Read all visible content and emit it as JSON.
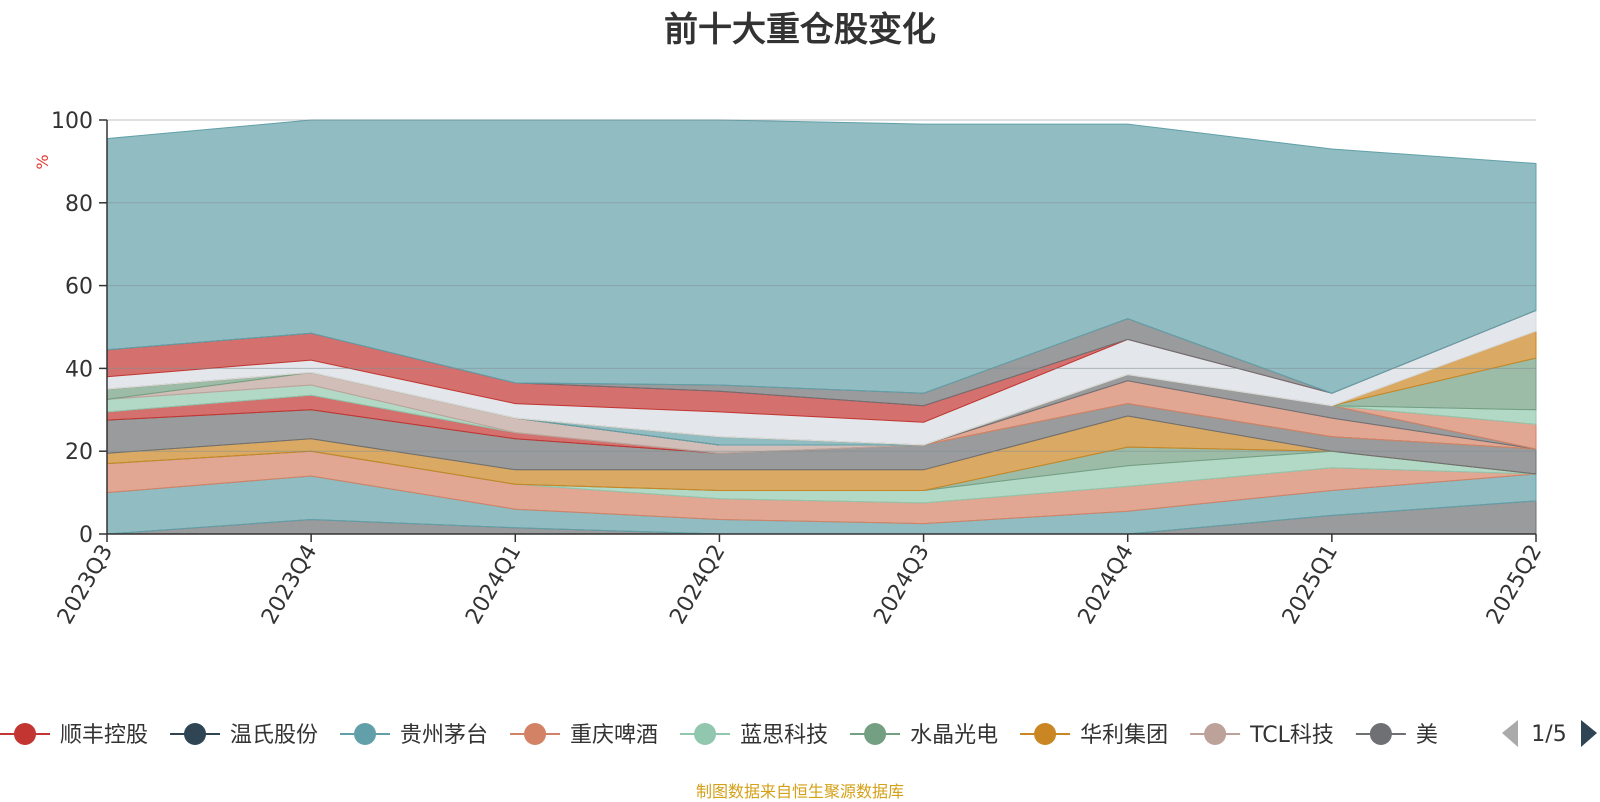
{
  "footer": "制图数据来自恒生聚源数据库",
  "colors": {
    "axis": "#333333",
    "grid": "#7f8f94",
    "ylabel": "#e53935",
    "title": "#333333",
    "footer": "#d4a017",
    "pager_active": "#2f4554",
    "pager_inactive": "#aaaaaa"
  },
  "legend": {
    "pager": "1/5",
    "prev_icon": "triangle-left-icon",
    "next_icon": "triangle-right-icon"
  },
  "chart_data": {
    "type": "area",
    "stacked": true,
    "title": "前十大重仓股变化",
    "xlabel": "",
    "ylabel": "%",
    "ylim": [
      0,
      100
    ],
    "yticks": [
      0,
      20,
      40,
      60,
      80,
      100
    ],
    "grid": true,
    "legend_position": "bottom",
    "categories": [
      "2023Q3",
      "2023Q4",
      "2024Q1",
      "2024Q2",
      "2024Q3",
      "2024Q4",
      "2025Q1",
      "2025Q2"
    ],
    "series": [
      {
        "name": "",
        "color": "#6e7074",
        "values": [
          0.0,
          3.5,
          1.5,
          0.0,
          0.0,
          0.0,
          4.5,
          8.0
        ]
      },
      {
        "name": "",
        "color": "#61a0a8",
        "values": [
          10.0,
          10.5,
          4.5,
          3.5,
          2.5,
          5.5,
          6.0,
          6.5
        ]
      },
      {
        "name": "",
        "color": "#d48265",
        "values": [
          7.0,
          6.0,
          6.0,
          5.0,
          5.0,
          6.0,
          5.5,
          0.0
        ]
      },
      {
        "name": "",
        "color": "#91c7ae",
        "values": [
          0.0,
          0.0,
          0.0,
          2.0,
          3.0,
          5.0,
          4.0,
          0.0
        ]
      },
      {
        "name": "",
        "color": "#749f83",
        "values": [
          0.0,
          0.0,
          0.0,
          0.0,
          0.0,
          4.5,
          0.0,
          0.0
        ]
      },
      {
        "name": "",
        "color": "#ca8622",
        "values": [
          2.5,
          3.0,
          3.5,
          5.0,
          5.0,
          7.5,
          0.0,
          0.0
        ]
      },
      {
        "name": "",
        "color": "#6e7074",
        "values": [
          8.0,
          7.0,
          7.5,
          4.0,
          6.0,
          3.0,
          3.5,
          6.0
        ]
      },
      {
        "name": "",
        "color": "#c23531",
        "values": [
          2.0,
          3.5,
          1.5,
          0.0,
          0.0,
          0.0,
          0.0,
          0.0
        ]
      },
      {
        "name": "",
        "color": "#91c7ae",
        "values": [
          3.0,
          2.5,
          0.0,
          0.0,
          0.0,
          0.0,
          0.0,
          0.0
        ]
      },
      {
        "name": "",
        "color": "#bda29a",
        "values": [
          0.0,
          3.0,
          3.5,
          2.0,
          0.0,
          0.0,
          0.0,
          0.0
        ]
      },
      {
        "name": "",
        "color": "#749f83",
        "values": [
          2.5,
          0.0,
          0.0,
          0.0,
          0.0,
          0.0,
          0.0,
          0.0
        ]
      },
      {
        "name": "",
        "color": "#d48265",
        "values": [
          0.0,
          0.0,
          0.0,
          0.0,
          0.0,
          5.5,
          4.5,
          0.0
        ]
      },
      {
        "name": "",
        "color": "#6e7074",
        "values": [
          0.0,
          0.0,
          0.0,
          0.0,
          0.0,
          1.5,
          3.0,
          0.0
        ]
      },
      {
        "name": "",
        "color": "#61a0a8",
        "values": [
          0.0,
          0.0,
          0.0,
          2.0,
          0.0,
          0.0,
          0.0,
          0.0
        ]
      },
      {
        "name": "",
        "color": "#d48265",
        "values": [
          0.0,
          0.0,
          0.0,
          0.0,
          0.0,
          0.0,
          0.0,
          6.0
        ]
      },
      {
        "name": "",
        "color": "#91c7ae",
        "values": [
          0.0,
          0.0,
          0.0,
          0.0,
          0.0,
          0.0,
          0.0,
          3.5
        ]
      },
      {
        "name": "",
        "color": "#749f83",
        "values": [
          0.0,
          0.0,
          0.0,
          0.0,
          0.0,
          0.0,
          0.0,
          12.5
        ]
      },
      {
        "name": "",
        "color": "#ca8622",
        "values": [
          0.0,
          0.0,
          0.0,
          0.0,
          0.0,
          0.0,
          0.0,
          6.5
        ]
      },
      {
        "name": "",
        "color": "#d7dbe1",
        "values": [
          3.0,
          3.0,
          3.5,
          6.0,
          5.5,
          8.5,
          3.0,
          5.0
        ]
      },
      {
        "name": "",
        "color": "#c23531",
        "values": [
          6.5,
          6.5,
          5.0,
          5.0,
          4.0,
          0.0,
          0.0,
          0.0
        ]
      },
      {
        "name": "",
        "color": "#6e7074",
        "values": [
          0.0,
          0.0,
          0.0,
          1.5,
          3.0,
          5.0,
          0.0,
          0.0
        ]
      },
      {
        "name": "",
        "color": "#61a0a8",
        "values": [
          51.0,
          51.5,
          63.5,
          64.0,
          65.0,
          47.0,
          59.0,
          35.5
        ]
      }
    ],
    "legend_entries": [
      {
        "name": "顺丰控股",
        "color": "#c23531"
      },
      {
        "name": "温氏股份",
        "color": "#2f4554"
      },
      {
        "name": "贵州茅台",
        "color": "#61a0a8"
      },
      {
        "name": "重庆啤酒",
        "color": "#d48265"
      },
      {
        "name": "蓝思科技",
        "color": "#91c7ae"
      },
      {
        "name": "水晶光电",
        "color": "#749f83"
      },
      {
        "name": "华利集团",
        "color": "#ca8622"
      },
      {
        "name": "TCL科技",
        "color": "#bda29a"
      },
      {
        "name": "美",
        "color": "#6e7074"
      }
    ]
  }
}
